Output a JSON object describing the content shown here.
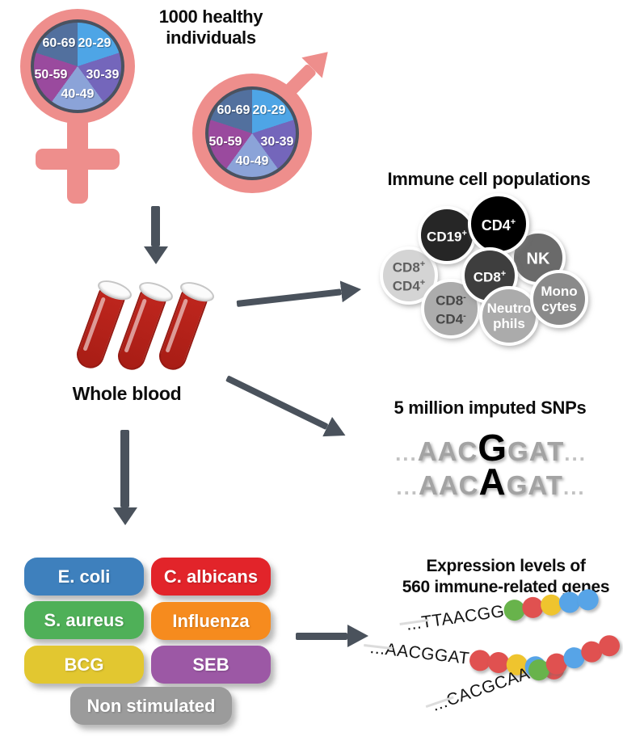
{
  "header": {
    "title_line1": "1000 healthy",
    "title_line2": "individuals"
  },
  "demographics": {
    "symbol_color": "#ee8e8c",
    "age_groups": [
      {
        "label": "20-29",
        "color": "#4ea5e6"
      },
      {
        "label": "30-39",
        "color": "#7466bb"
      },
      {
        "label": "40-49",
        "color": "#8ba3d8"
      },
      {
        "label": "50-59",
        "color": "#9a4a9e"
      },
      {
        "label": "60-69",
        "color": "#52709e"
      }
    ]
  },
  "whole_blood": {
    "label": "Whole blood",
    "tube_color": "#b5211a",
    "tube_count": 3
  },
  "immune_cells": {
    "title": "Immune cell populations",
    "cells": [
      {
        "lines": [
          {
            "text": "CD19",
            "sup": "+"
          }
        ],
        "color": "#262626",
        "text_color": "#ffffff"
      },
      {
        "lines": [
          {
            "text": "CD4",
            "sup": "+"
          }
        ],
        "color": "#000000",
        "text_color": "#ffffff"
      },
      {
        "lines": [
          {
            "text": "NK",
            "sup": ""
          }
        ],
        "color": "#6a6a6a",
        "text_color": "#ffffff"
      },
      {
        "lines": [
          {
            "text": "CD8",
            "sup": "+"
          }
        ],
        "color": "#3e3e3e",
        "text_color": "#ffffff"
      },
      {
        "lines": [
          {
            "text": "CD8",
            "sup": "+"
          },
          {
            "text": "CD4",
            "sup": "+"
          }
        ],
        "color": "#d4d4d4",
        "text_color": "#5f5f5f"
      },
      {
        "lines": [
          {
            "text": "CD8",
            "sup": "-"
          },
          {
            "text": "CD4",
            "sup": "-"
          }
        ],
        "color": "#acacac",
        "text_color": "#474747"
      },
      {
        "lines": [
          {
            "text": "Neutro",
            "sup": ""
          },
          {
            "text": "phils",
            "sup": ""
          }
        ],
        "color": "#ababab",
        "text_color": "#ffffff"
      },
      {
        "lines": [
          {
            "text": "Mono",
            "sup": ""
          },
          {
            "text": "cytes",
            "sup": ""
          }
        ],
        "color": "#8a8a8a",
        "text_color": "#ffffff"
      }
    ]
  },
  "snps": {
    "title": "5 million imputed SNPs",
    "ellipsis": "...",
    "sequences": [
      {
        "prefix": "AAC",
        "variant": "G",
        "suffix": "GAT"
      },
      {
        "prefix": "AAC",
        "variant": "A",
        "suffix": "GAT"
      }
    ]
  },
  "stimuli": {
    "items": [
      {
        "label": "E. coli",
        "color": "#3e80bd"
      },
      {
        "label": "C. albicans",
        "color": "#e2242a"
      },
      {
        "label": "S. aureus",
        "color": "#4fb058"
      },
      {
        "label": "Influenza",
        "color": "#f68b1e"
      },
      {
        "label": "BCG",
        "color": "#e2c730"
      },
      {
        "label": "SEB",
        "color": "#9c58a5"
      },
      {
        "label": "Non stimulated",
        "color": "#9b9b9b"
      }
    ]
  },
  "expression": {
    "title_line1": "Expression levels of",
    "title_line2": "560 immune-related genes",
    "dot_colors": {
      "green": "#68b34b",
      "red": "#e05150",
      "yellow": "#efc42e",
      "blue": "#57a4e7"
    },
    "rows": [
      {
        "sequence": "...TTAACGG",
        "dots": [
          "green",
          "red",
          "yellow",
          "blue",
          "blue"
        ]
      },
      {
        "sequence": "...AACGGAT",
        "dots": [
          "red",
          "red",
          "yellow",
          "blue",
          "red"
        ]
      },
      {
        "sequence": "...CACGCAA",
        "dots": [
          "green",
          "red",
          "blue",
          "red",
          "red"
        ]
      }
    ]
  },
  "arrow_color": "#4a525c"
}
